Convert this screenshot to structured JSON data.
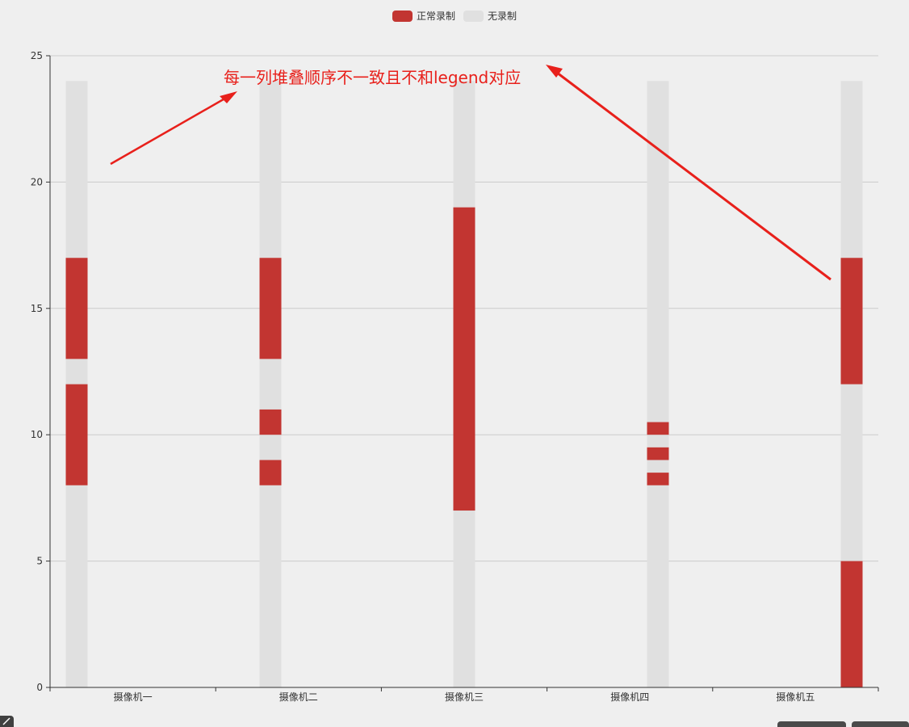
{
  "legend": [
    {
      "label": "正常录制",
      "color": "#c23531"
    },
    {
      "label": "无录制",
      "color": "#e0e0e0"
    }
  ],
  "annotation": {
    "text": "每一列堆叠顺序不一致且不和legend对应",
    "color": "#e8201b"
  },
  "chart_data": {
    "type": "bar",
    "stacked": true,
    "categories": [
      "摄像机一",
      "摄像机二",
      "摄像机三",
      "摄像机四",
      "摄像机五"
    ],
    "ylim": [
      0,
      25
    ],
    "yticks": [
      0,
      5,
      10,
      15,
      20,
      25
    ],
    "grid": true,
    "legend_position": "top-center",
    "title": "",
    "xlabel": "",
    "ylabel": "",
    "series": [
      {
        "name": "正常录制",
        "color": "#c23531",
        "segments": [
          [
            [
              8,
              12
            ],
            [
              13,
              17
            ]
          ],
          [
            [
              8,
              9
            ],
            [
              10,
              11
            ],
            [
              13,
              17
            ]
          ],
          [
            [
              7,
              19
            ]
          ],
          [
            [
              8,
              8.5
            ],
            [
              9,
              9.5
            ],
            [
              10,
              10.5
            ]
          ],
          [
            [
              0,
              5
            ],
            [
              12,
              17
            ]
          ]
        ]
      },
      {
        "name": "无录制",
        "color": "#e0e0e0",
        "segments": [
          [
            [
              0,
              8
            ],
            [
              12,
              13
            ],
            [
              17,
              24
            ]
          ],
          [
            [
              0,
              8
            ],
            [
              9,
              10
            ],
            [
              11,
              13
            ],
            [
              17,
              24
            ]
          ],
          [
            [
              0,
              7
            ],
            [
              19,
              24
            ]
          ],
          [
            [
              0,
              8
            ],
            [
              8.5,
              9
            ],
            [
              9.5,
              10
            ],
            [
              10.5,
              24
            ]
          ],
          [
            [
              5,
              12
            ],
            [
              17,
              24
            ]
          ]
        ]
      }
    ]
  }
}
